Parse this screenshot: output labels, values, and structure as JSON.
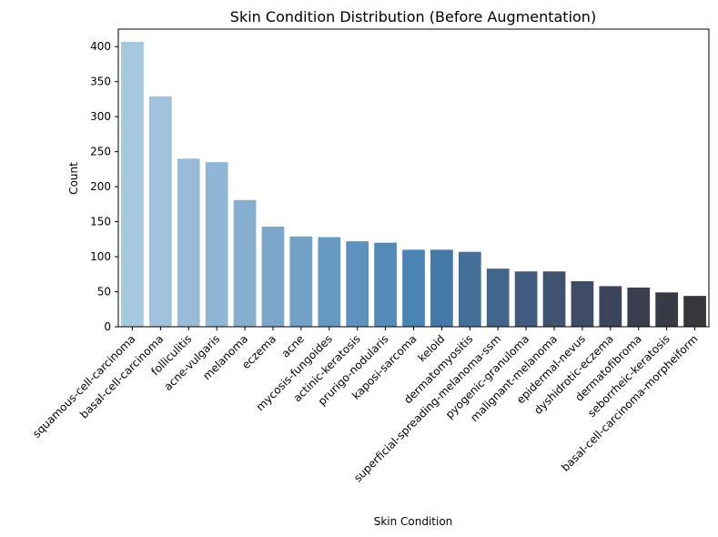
{
  "chart_data": {
    "type": "bar",
    "title": "Skin Condition Distribution (Before Augmentation)",
    "xlabel": "Skin Condition",
    "ylabel": "Count",
    "ylim": [
      0,
      425
    ],
    "yticks": [
      0,
      50,
      100,
      150,
      200,
      250,
      300,
      350,
      400
    ],
    "grid": false,
    "categories": [
      "squamous-cell-carcinoma",
      "basal-cell-carcinoma",
      "folliculitis",
      "acne-vulgaris",
      "melanoma",
      "eczema",
      "acne",
      "mycosis-fungoides",
      "actinic-keratosis",
      "prurigo-nodularis",
      "kaposi-sarcoma",
      "keloid",
      "dermatomyositis",
      "superficial-spreading-melanoma-ssm",
      "pyogenic-granuloma",
      "malignant-melanoma",
      "epidermal-nevus",
      "dyshidrotic-eczema",
      "dermatofibroma",
      "seborrheic-keratosis",
      "basal-cell-carcinoma-morpheiform"
    ],
    "values": [
      407,
      329,
      240,
      235,
      181,
      143,
      129,
      128,
      122,
      120,
      110,
      110,
      107,
      83,
      79,
      79,
      65,
      58,
      56,
      49,
      44
    ],
    "colors": [
      "#a6c9df",
      "#9fc3dc",
      "#98bcd8",
      "#8fb6d4",
      "#86aecf",
      "#7ca7cb",
      "#72a0c6",
      "#6899c2",
      "#5e92be",
      "#558bb9",
      "#4a85b5",
      "#4479a7",
      "#436f99",
      "#42658b",
      "#415c7e",
      "#3f5371",
      "#3e4c66",
      "#3c455b",
      "#3a3f50",
      "#383a45",
      "#36363b"
    ]
  }
}
